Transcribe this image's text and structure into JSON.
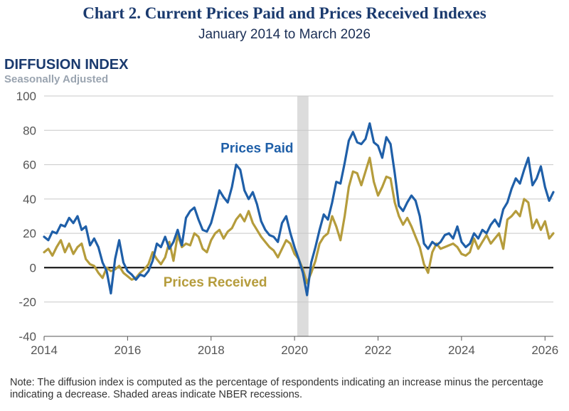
{
  "chart_data": {
    "type": "line",
    "title": "Chart 2. Current Prices Paid and Prices Received Indexes",
    "subtitle": "January 2014 to March 2026",
    "ylabel": "DIFFUSION INDEX",
    "yunit": "Seasonally Adjusted",
    "xlim": [
      2014,
      2026.2
    ],
    "ylim": [
      -40,
      100
    ],
    "y_ticks": [
      -40,
      -20,
      0,
      20,
      40,
      60,
      80,
      100
    ],
    "x_ticks": [
      2014,
      2016,
      2018,
      2020,
      2022,
      2024,
      2026
    ],
    "recession": {
      "start": 2020.1,
      "end": 2020.3
    },
    "series": [
      {
        "name": "Prices Paid",
        "color": "#1f5fa8",
        "points": [
          [
            2014.0,
            18
          ],
          [
            2014.1,
            16
          ],
          [
            2014.2,
            21
          ],
          [
            2014.3,
            20
          ],
          [
            2014.4,
            25
          ],
          [
            2014.5,
            24
          ],
          [
            2014.6,
            29
          ],
          [
            2014.7,
            26
          ],
          [
            2014.8,
            30
          ],
          [
            2014.9,
            22
          ],
          [
            2015.0,
            24
          ],
          [
            2015.1,
            13
          ],
          [
            2015.2,
            17
          ],
          [
            2015.3,
            12
          ],
          [
            2015.4,
            3
          ],
          [
            2015.5,
            -2
          ],
          [
            2015.6,
            -15
          ],
          [
            2015.7,
            5
          ],
          [
            2015.8,
            16
          ],
          [
            2015.9,
            3
          ],
          [
            2016.0,
            -2
          ],
          [
            2016.1,
            -4
          ],
          [
            2016.2,
            -7
          ],
          [
            2016.3,
            -4
          ],
          [
            2016.4,
            -5
          ],
          [
            2016.5,
            -2
          ],
          [
            2016.6,
            4
          ],
          [
            2016.7,
            14
          ],
          [
            2016.8,
            12
          ],
          [
            2016.9,
            18
          ],
          [
            2017.0,
            11
          ],
          [
            2017.1,
            15
          ],
          [
            2017.2,
            22
          ],
          [
            2017.3,
            13
          ],
          [
            2017.4,
            29
          ],
          [
            2017.5,
            33
          ],
          [
            2017.6,
            35
          ],
          [
            2017.7,
            28
          ],
          [
            2017.8,
            22
          ],
          [
            2017.9,
            21
          ],
          [
            2018.0,
            26
          ],
          [
            2018.1,
            35
          ],
          [
            2018.2,
            45
          ],
          [
            2018.3,
            41
          ],
          [
            2018.4,
            38
          ],
          [
            2018.5,
            47
          ],
          [
            2018.6,
            60
          ],
          [
            2018.7,
            57
          ],
          [
            2018.8,
            45
          ],
          [
            2018.9,
            40
          ],
          [
            2019.0,
            44
          ],
          [
            2019.1,
            37
          ],
          [
            2019.2,
            27
          ],
          [
            2019.3,
            22
          ],
          [
            2019.4,
            19
          ],
          [
            2019.5,
            18
          ],
          [
            2019.6,
            15
          ],
          [
            2019.7,
            26
          ],
          [
            2019.8,
            30
          ],
          [
            2019.9,
            20
          ],
          [
            2020.0,
            12
          ],
          [
            2020.1,
            5
          ],
          [
            2020.2,
            -3
          ],
          [
            2020.3,
            -16
          ],
          [
            2020.4,
            3
          ],
          [
            2020.5,
            12
          ],
          [
            2020.6,
            22
          ],
          [
            2020.7,
            31
          ],
          [
            2020.8,
            28
          ],
          [
            2020.9,
            38
          ],
          [
            2021.0,
            50
          ],
          [
            2021.1,
            49
          ],
          [
            2021.2,
            61
          ],
          [
            2021.3,
            74
          ],
          [
            2021.4,
            79
          ],
          [
            2021.5,
            73
          ],
          [
            2021.6,
            72
          ],
          [
            2021.7,
            75
          ],
          [
            2021.8,
            84
          ],
          [
            2021.9,
            73
          ],
          [
            2022.0,
            71
          ],
          [
            2022.1,
            64
          ],
          [
            2022.2,
            76
          ],
          [
            2022.3,
            72
          ],
          [
            2022.4,
            55
          ],
          [
            2022.5,
            36
          ],
          [
            2022.6,
            33
          ],
          [
            2022.7,
            38
          ],
          [
            2022.8,
            42
          ],
          [
            2022.9,
            39
          ],
          [
            2023.0,
            30
          ],
          [
            2023.1,
            14
          ],
          [
            2023.2,
            11
          ],
          [
            2023.3,
            15
          ],
          [
            2023.4,
            13
          ],
          [
            2023.5,
            15
          ],
          [
            2023.6,
            19
          ],
          [
            2023.7,
            20
          ],
          [
            2023.8,
            17
          ],
          [
            2023.9,
            24
          ],
          [
            2024.0,
            15
          ],
          [
            2024.1,
            12
          ],
          [
            2024.2,
            14
          ],
          [
            2024.3,
            20
          ],
          [
            2024.4,
            17
          ],
          [
            2024.5,
            22
          ],
          [
            2024.6,
            20
          ],
          [
            2024.7,
            25
          ],
          [
            2024.8,
            28
          ],
          [
            2024.9,
            24
          ],
          [
            2025.0,
            34
          ],
          [
            2025.1,
            38
          ],
          [
            2025.2,
            46
          ],
          [
            2025.3,
            52
          ],
          [
            2025.4,
            49
          ],
          [
            2025.5,
            57
          ],
          [
            2025.6,
            64
          ],
          [
            2025.7,
            48
          ],
          [
            2025.8,
            52
          ],
          [
            2025.9,
            59
          ],
          [
            2026.0,
            47
          ],
          [
            2026.1,
            39
          ],
          [
            2026.2,
            44
          ]
        ]
      },
      {
        "name": "Prices Received",
        "color": "#b59c3c",
        "points": [
          [
            2014.0,
            9
          ],
          [
            2014.1,
            11
          ],
          [
            2014.2,
            7
          ],
          [
            2014.3,
            12
          ],
          [
            2014.4,
            16
          ],
          [
            2014.5,
            9
          ],
          [
            2014.6,
            14
          ],
          [
            2014.7,
            8
          ],
          [
            2014.8,
            12
          ],
          [
            2014.9,
            14
          ],
          [
            2015.0,
            5
          ],
          [
            2015.1,
            2
          ],
          [
            2015.2,
            1
          ],
          [
            2015.3,
            -3
          ],
          [
            2015.4,
            -6
          ],
          [
            2015.5,
            0
          ],
          [
            2015.6,
            -2
          ],
          [
            2015.7,
            -1
          ],
          [
            2015.8,
            1
          ],
          [
            2015.9,
            -3
          ],
          [
            2016.0,
            -5
          ],
          [
            2016.1,
            -7
          ],
          [
            2016.2,
            -6
          ],
          [
            2016.3,
            -3
          ],
          [
            2016.4,
            -1
          ],
          [
            2016.5,
            2
          ],
          [
            2016.6,
            9
          ],
          [
            2016.7,
            5
          ],
          [
            2016.8,
            2
          ],
          [
            2016.9,
            6
          ],
          [
            2017.0,
            15
          ],
          [
            2017.1,
            4
          ],
          [
            2017.2,
            19
          ],
          [
            2017.3,
            12
          ],
          [
            2017.4,
            14
          ],
          [
            2017.5,
            13
          ],
          [
            2017.6,
            20
          ],
          [
            2017.7,
            18
          ],
          [
            2017.8,
            11
          ],
          [
            2017.9,
            9
          ],
          [
            2018.0,
            16
          ],
          [
            2018.1,
            20
          ],
          [
            2018.2,
            22
          ],
          [
            2018.3,
            17
          ],
          [
            2018.4,
            21
          ],
          [
            2018.5,
            23
          ],
          [
            2018.6,
            28
          ],
          [
            2018.7,
            31
          ],
          [
            2018.8,
            27
          ],
          [
            2018.9,
            33
          ],
          [
            2019.0,
            26
          ],
          [
            2019.1,
            22
          ],
          [
            2019.2,
            18
          ],
          [
            2019.3,
            15
          ],
          [
            2019.4,
            12
          ],
          [
            2019.5,
            10
          ],
          [
            2019.6,
            6
          ],
          [
            2019.7,
            11
          ],
          [
            2019.8,
            16
          ],
          [
            2019.9,
            14
          ],
          [
            2020.0,
            8
          ],
          [
            2020.1,
            5
          ],
          [
            2020.2,
            -1
          ],
          [
            2020.3,
            -9
          ],
          [
            2020.4,
            -3
          ],
          [
            2020.5,
            4
          ],
          [
            2020.6,
            14
          ],
          [
            2020.7,
            18
          ],
          [
            2020.8,
            20
          ],
          [
            2020.9,
            30
          ],
          [
            2021.0,
            24
          ],
          [
            2021.1,
            16
          ],
          [
            2021.2,
            30
          ],
          [
            2021.3,
            47
          ],
          [
            2021.4,
            56
          ],
          [
            2021.5,
            55
          ],
          [
            2021.6,
            48
          ],
          [
            2021.7,
            56
          ],
          [
            2021.8,
            64
          ],
          [
            2021.9,
            50
          ],
          [
            2022.0,
            42
          ],
          [
            2022.1,
            47
          ],
          [
            2022.2,
            53
          ],
          [
            2022.3,
            52
          ],
          [
            2022.4,
            38
          ],
          [
            2022.5,
            30
          ],
          [
            2022.6,
            25
          ],
          [
            2022.7,
            29
          ],
          [
            2022.8,
            24
          ],
          [
            2022.9,
            18
          ],
          [
            2023.0,
            12
          ],
          [
            2023.1,
            2
          ],
          [
            2023.2,
            -3
          ],
          [
            2023.3,
            9
          ],
          [
            2023.4,
            14
          ],
          [
            2023.5,
            11
          ],
          [
            2023.6,
            12
          ],
          [
            2023.7,
            13
          ],
          [
            2023.8,
            14
          ],
          [
            2023.9,
            12
          ],
          [
            2024.0,
            8
          ],
          [
            2024.1,
            7
          ],
          [
            2024.2,
            9
          ],
          [
            2024.3,
            17
          ],
          [
            2024.4,
            11
          ],
          [
            2024.5,
            15
          ],
          [
            2024.6,
            19
          ],
          [
            2024.7,
            14
          ],
          [
            2024.8,
            17
          ],
          [
            2024.9,
            20
          ],
          [
            2025.0,
            11
          ],
          [
            2025.1,
            28
          ],
          [
            2025.2,
            30
          ],
          [
            2025.3,
            33
          ],
          [
            2025.4,
            30
          ],
          [
            2025.5,
            40
          ],
          [
            2025.6,
            38
          ],
          [
            2025.7,
            23
          ],
          [
            2025.8,
            28
          ],
          [
            2025.9,
            22
          ],
          [
            2026.0,
            27
          ],
          [
            2026.1,
            17
          ],
          [
            2026.2,
            20
          ]
        ]
      }
    ],
    "annotations": [
      {
        "text": "Prices Paid",
        "series": "Prices Paid",
        "at": [
          2019.1,
          67
        ]
      },
      {
        "text": "Prices Received",
        "series": "Prices Received",
        "at": [
          2018.1,
          -11
        ]
      }
    ]
  },
  "note": "Note: The diffusion index is computed as the percentage of respondents indicating an increase minus the percentage indicating a decrease. Shaded areas indicate NBER recessions."
}
